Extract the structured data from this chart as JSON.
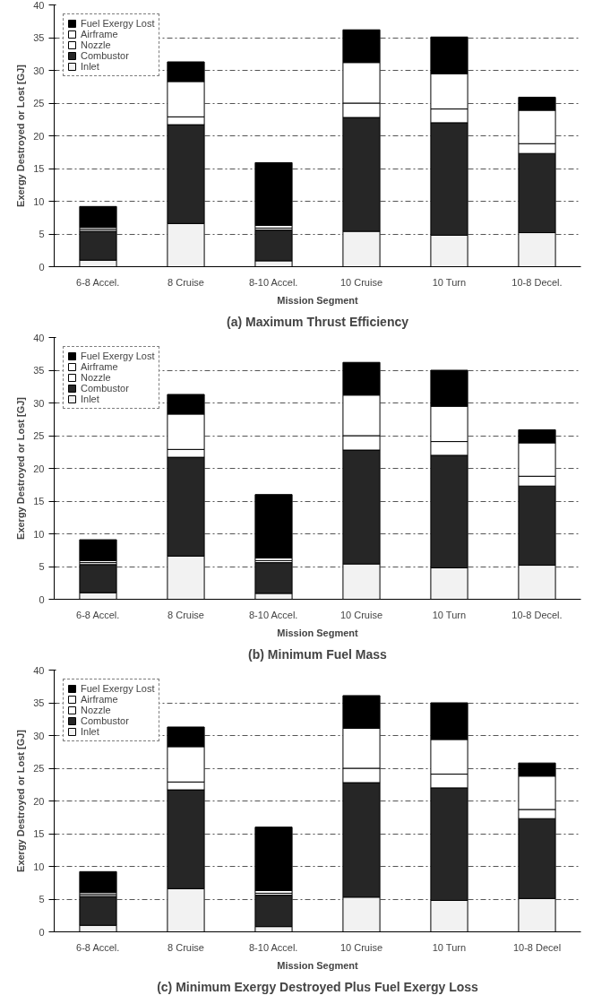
{
  "chart_data": [
    {
      "type": "bar",
      "title": "(a) Maximum Thrust Efficiency",
      "xlabel": "Mission Segment",
      "ylabel": "Exergy Destroyed or Lost [GJ]",
      "stacked": true,
      "legend": "top left",
      "grid": "y",
      "ylim": [
        0,
        40
      ],
      "yticks": [
        0,
        5,
        10,
        15,
        20,
        25,
        30,
        35,
        40
      ],
      "categories": [
        "6-8 Accel.",
        "8 Cruise",
        "8-10 Accel.",
        "10 Cruise",
        "10 Turn",
        "10-8 Decel."
      ],
      "series": [
        {
          "name": "Inlet",
          "color": "#f2f2f2",
          "values": [
            1.0,
            6.6,
            0.9,
            5.4,
            4.8,
            5.2
          ]
        },
        {
          "name": "Combustor",
          "color": "#262626",
          "values": [
            4.4,
            15.1,
            4.7,
            17.4,
            17.2,
            12.1
          ]
        },
        {
          "name": "Nozzle",
          "color": "#ffffff",
          "values": [
            0.3,
            1.2,
            0.3,
            2.2,
            2.1,
            1.5
          ]
        },
        {
          "name": "Airframe",
          "color": "#ffffff",
          "values": [
            0.3,
            5.4,
            0.4,
            6.2,
            5.4,
            5.1
          ]
        },
        {
          "name": "Fuel Exergy Lost",
          "color": "#000000",
          "values": [
            3.2,
            3.0,
            9.6,
            5.0,
            5.6,
            2.0
          ]
        }
      ]
    },
    {
      "type": "bar",
      "title": "(b) Minimum Fuel Mass",
      "xlabel": "Mission Segment",
      "ylabel": "Exergy Destroyed or Lost [GJ]",
      "stacked": true,
      "legend": "top left",
      "grid": "y",
      "ylim": [
        0,
        40
      ],
      "yticks": [
        0,
        5,
        10,
        15,
        20,
        25,
        30,
        35,
        40
      ],
      "categories": [
        "6-8 Accel.",
        "8 Cruise",
        "8-10 Accel.",
        "10 Cruise",
        "10 Turn",
        "10-8 Decel."
      ],
      "series": [
        {
          "name": "Inlet",
          "color": "#f2f2f2",
          "values": [
            1.0,
            6.6,
            0.9,
            5.4,
            4.8,
            5.2
          ]
        },
        {
          "name": "Combustor",
          "color": "#262626",
          "values": [
            4.3,
            15.1,
            4.7,
            17.4,
            17.2,
            12.1
          ]
        },
        {
          "name": "Nozzle",
          "color": "#ffffff",
          "values": [
            0.3,
            1.2,
            0.3,
            2.2,
            2.1,
            1.5
          ]
        },
        {
          "name": "Airframe",
          "color": "#ffffff",
          "values": [
            0.3,
            5.4,
            0.4,
            6.2,
            5.4,
            5.1
          ]
        },
        {
          "name": "Fuel Exergy Lost",
          "color": "#000000",
          "values": [
            3.2,
            3.0,
            9.7,
            5.0,
            5.5,
            2.0
          ]
        }
      ]
    },
    {
      "type": "bar",
      "title": "(c) Minimum Exergy Destroyed Plus Fuel Exergy Loss",
      "xlabel": "Mission Segment",
      "ylabel": "Exergy Destroyed or Lost [GJ]",
      "stacked": true,
      "legend": "top left",
      "grid": "y",
      "ylim": [
        0,
        40
      ],
      "yticks": [
        0,
        5,
        10,
        15,
        20,
        25,
        30,
        35,
        40
      ],
      "categories": [
        "6-8 Accel.",
        "8 Cruise",
        "8-10 Accel.",
        "10 Cruise",
        "10 Turn",
        "10-8 Decel"
      ],
      "series": [
        {
          "name": "Inlet",
          "color": "#f2f2f2",
          "values": [
            1.0,
            6.6,
            0.8,
            5.3,
            4.8,
            5.1
          ]
        },
        {
          "name": "Combustor",
          "color": "#262626",
          "values": [
            4.4,
            15.1,
            4.8,
            17.5,
            17.2,
            12.2
          ]
        },
        {
          "name": "Nozzle",
          "color": "#ffffff",
          "values": [
            0.3,
            1.2,
            0.3,
            2.2,
            2.1,
            1.4
          ]
        },
        {
          "name": "Airframe",
          "color": "#ffffff",
          "values": [
            0.3,
            5.4,
            0.4,
            6.1,
            5.3,
            5.1
          ]
        },
        {
          "name": "Fuel Exergy Lost",
          "color": "#000000",
          "values": [
            3.2,
            3.0,
            9.7,
            5.0,
            5.6,
            2.0
          ]
        }
      ]
    }
  ]
}
